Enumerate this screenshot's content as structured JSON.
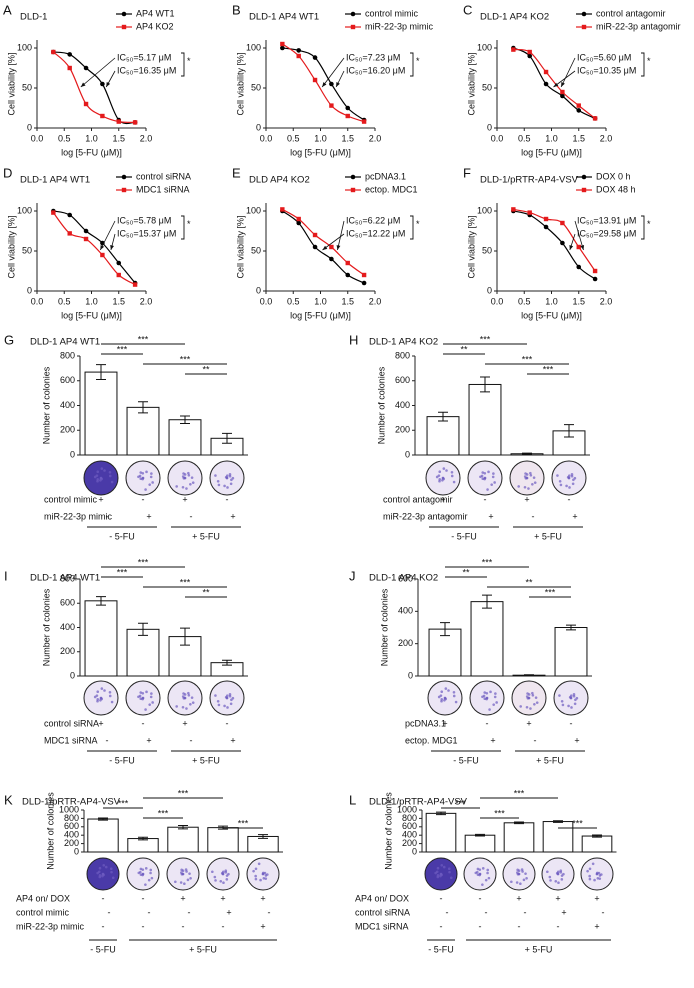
{
  "chart_data": [
    {
      "type": "line",
      "panel": "A",
      "title": "DLD-1",
      "xlabel": "log [5-FU (μM)]",
      "ylabel": "Cell viability [%]",
      "x": [
        0.3,
        0.6,
        0.9,
        1.2,
        1.5,
        1.8
      ],
      "xlim": [
        0,
        2
      ],
      "xticks": [
        {
          "value": 0,
          "label": "0.0"
        },
        0.5,
        {
          "value": 1,
          "label": "1.0"
        },
        1.5,
        {
          "value": 2,
          "label": "2.0"
        }
      ],
      "ylim": [
        0,
        110
      ],
      "yticks": [
        0,
        50,
        100
      ],
      "series": [
        {
          "name": "AP4 WT1",
          "color": "#000000",
          "marker": "circle",
          "values": [
            95,
            92,
            75,
            55,
            10,
            7
          ]
        },
        {
          "name": "AP4 KO2",
          "color": "#e41a1c",
          "marker": "square",
          "values": [
            95,
            75,
            30,
            15,
            8,
            7
          ]
        }
      ],
      "annotations": [
        "IC₅₀=5.17 μM",
        "IC₅₀=16.35 μM"
      ],
      "significance": "*"
    },
    {
      "type": "line",
      "panel": "B",
      "title": "DLD-1 AP4 WT1",
      "xlabel": "log [5-FU (μM)]",
      "ylabel": "Cell viability [%]",
      "x": [
        0.3,
        0.6,
        0.9,
        1.2,
        1.5,
        1.8
      ],
      "xlim": [
        0,
        2
      ],
      "xticks": [
        {
          "value": 0,
          "label": "0.0"
        },
        0.5,
        {
          "value": 1,
          "label": "1.0"
        },
        1.5,
        {
          "value": 2,
          "label": "2.0"
        }
      ],
      "ylim": [
        0,
        110
      ],
      "yticks": [
        0,
        50,
        100
      ],
      "series": [
        {
          "name": "control mimic",
          "color": "#000000",
          "marker": "circle",
          "values": [
            100,
            97,
            88,
            55,
            25,
            10
          ]
        },
        {
          "name": "miR-22-3p mimic",
          "color": "#e41a1c",
          "marker": "square",
          "values": [
            105,
            90,
            60,
            28,
            15,
            8
          ]
        }
      ],
      "annotations": [
        "IC₅₀=7.23 μM",
        "IC₅₀=16.20 μM"
      ],
      "significance": "*"
    },
    {
      "type": "line",
      "panel": "C",
      "title": "DLD-1 AP4 KO2",
      "xlabel": "log [5-FU (μM)]",
      "ylabel": "Cell viability [%]",
      "x": [
        0.3,
        0.6,
        0.9,
        1.2,
        1.5,
        1.8
      ],
      "xlim": [
        0,
        2
      ],
      "xticks": [
        {
          "value": 0,
          "label": "0.0"
        },
        0.5,
        {
          "value": 1,
          "label": "1.0"
        },
        1.5,
        {
          "value": 2,
          "label": "2.0"
        }
      ],
      "ylim": [
        0,
        110
      ],
      "yticks": [
        0,
        50,
        100
      ],
      "series": [
        {
          "name": "control antagomir",
          "color": "#000000",
          "marker": "circle",
          "values": [
            100,
            90,
            55,
            40,
            22,
            12
          ]
        },
        {
          "name": "miR-22-3p antagomir",
          "color": "#e41a1c",
          "marker": "square",
          "values": [
            98,
            95,
            70,
            45,
            28,
            12
          ]
        }
      ],
      "annotations": [
        "IC₅₀=5.60 μM",
        "IC₅₀=10.35 μM"
      ],
      "significance": "*"
    },
    {
      "type": "line",
      "panel": "D",
      "title": "DLD-1 AP4 WT1",
      "xlabel": "log [5-FU (μM)]",
      "ylabel": "Cell viability [%]",
      "x": [
        0.3,
        0.6,
        0.9,
        1.2,
        1.5,
        1.8
      ],
      "xlim": [
        0,
        2
      ],
      "xticks": [
        {
          "value": 0,
          "label": "0.0"
        },
        0.5,
        {
          "value": 1,
          "label": "1.0"
        },
        1.5,
        {
          "value": 2,
          "label": "2.0"
        }
      ],
      "ylim": [
        0,
        110
      ],
      "yticks": [
        0,
        50,
        100
      ],
      "series": [
        {
          "name": "control siRNA",
          "color": "#000000",
          "marker": "circle",
          "values": [
            100,
            95,
            75,
            60,
            35,
            10
          ]
        },
        {
          "name": "MDC1 siRNA",
          "color": "#e41a1c",
          "marker": "square",
          "values": [
            98,
            72,
            65,
            45,
            20,
            8
          ]
        }
      ],
      "annotations": [
        "IC₅₀=5.78 μM",
        "IC₅₀=15.37 μM"
      ],
      "significance": "*"
    },
    {
      "type": "line",
      "panel": "E",
      "title": "DLD AP4 KO2",
      "xlabel": "log [5-FU (μM)]",
      "ylabel": "Cell viability [%]",
      "x": [
        0.3,
        0.6,
        0.9,
        1.2,
        1.5,
        1.8
      ],
      "xlim": [
        0,
        2
      ],
      "xticks": [
        {
          "value": 0,
          "label": "0.0"
        },
        0.5,
        {
          "value": 1,
          "label": "1.0"
        },
        1.5,
        {
          "value": 2,
          "label": "2.0"
        }
      ],
      "ylim": [
        0,
        110
      ],
      "yticks": [
        0,
        50,
        100
      ],
      "series": [
        {
          "name": "pcDNA3.1",
          "color": "#000000",
          "marker": "circle",
          "values": [
            100,
            85,
            55,
            40,
            20,
            10
          ]
        },
        {
          "name": "ectop. MDC1",
          "color": "#e41a1c",
          "marker": "square",
          "values": [
            102,
            90,
            70,
            55,
            35,
            20
          ]
        }
      ],
      "annotations": [
        "IC₅₀=6.22 μM",
        "IC₅₀=12.22 μM"
      ],
      "significance": "*"
    },
    {
      "type": "line",
      "panel": "F",
      "title": "DLD-1/pRTR-AP4-VSV",
      "xlabel": "log [5-FU (μM)]",
      "ylabel": "Cell viability [%]",
      "x": [
        0.3,
        0.6,
        0.9,
        1.2,
        1.5,
        1.8
      ],
      "xlim": [
        0,
        2
      ],
      "xticks": [
        {
          "value": 0,
          "label": "0.0"
        },
        0.5,
        {
          "value": 1,
          "label": "1.0"
        },
        1.5,
        {
          "value": 2,
          "label": "2.0"
        }
      ],
      "ylim": [
        0,
        110
      ],
      "yticks": [
        0,
        50,
        100
      ],
      "series": [
        {
          "name": "DOX 0 h",
          "color": "#000000",
          "marker": "circle",
          "values": [
            100,
            95,
            80,
            60,
            30,
            15
          ]
        },
        {
          "name": "DOX 48 h",
          "color": "#e41a1c",
          "marker": "square",
          "values": [
            102,
            98,
            90,
            85,
            55,
            25
          ]
        }
      ],
      "annotations": [
        "IC₅₀=13.91 μM",
        "IC₅₀=29.58 μM"
      ],
      "significance": "*"
    },
    {
      "type": "bar",
      "panel": "G",
      "title": "DLD-1 AP4 WT1",
      "ylabel": "Number of colonies",
      "color": "#ffffff",
      "ylim": [
        0,
        800
      ],
      "yticks": [
        0,
        200,
        400,
        600,
        800
      ],
      "values": [
        670,
        385,
        285,
        135
      ],
      "errors": [
        60,
        45,
        30,
        40
      ],
      "significance": [
        {
          "from": 0,
          "to": 2,
          "label": "***"
        },
        {
          "from": 0,
          "to": 1,
          "label": "***"
        },
        {
          "from": 1,
          "to": 3,
          "label": "***"
        },
        {
          "from": 2,
          "to": 3,
          "label": "**"
        }
      ],
      "treatments": [
        {
          "name": "control mimic",
          "marks": [
            "+",
            "-",
            "+",
            "-"
          ]
        },
        {
          "name": "miR-22-3p mimic",
          "marks": [
            "-",
            "+",
            "-",
            "+"
          ]
        }
      ],
      "groups": [
        {
          "label": "- 5-FU",
          "from": 0,
          "to": 1
        },
        {
          "label": "+ 5-FU",
          "from": 2,
          "to": 3
        }
      ]
    },
    {
      "type": "bar",
      "panel": "H",
      "title": "DLD-1 AP4 KO2",
      "ylabel": "Number of colonies",
      "color": "#ffffff",
      "ylim": [
        0,
        800
      ],
      "yticks": [
        0,
        200,
        400,
        600,
        800
      ],
      "values": [
        310,
        570,
        10,
        195
      ],
      "errors": [
        35,
        60,
        5,
        50
      ],
      "significance": [
        {
          "from": 0,
          "to": 2,
          "label": "***"
        },
        {
          "from": 0,
          "to": 1,
          "label": "**"
        },
        {
          "from": 1,
          "to": 3,
          "label": "***"
        },
        {
          "from": 2,
          "to": 3,
          "label": "***"
        }
      ],
      "treatments": [
        {
          "name": "control antagomir",
          "marks": [
            "+",
            "-",
            "+",
            "-"
          ]
        },
        {
          "name": "miR-22-3p antagomir",
          "marks": [
            "-",
            "+",
            "-",
            "+"
          ]
        }
      ],
      "groups": [
        {
          "label": "- 5-FU",
          "from": 0,
          "to": 1
        },
        {
          "label": "+ 5-FU",
          "from": 2,
          "to": 3
        }
      ]
    },
    {
      "type": "bar",
      "panel": "I",
      "title": "DLD-1 AP4 WT1",
      "ylabel": "Number of colonies",
      "color": "#ffffff",
      "ylim": [
        0,
        800
      ],
      "yticks": [
        0,
        200,
        400,
        600,
        800
      ],
      "values": [
        620,
        385,
        325,
        110
      ],
      "errors": [
        35,
        50,
        70,
        20
      ],
      "significance": [
        {
          "from": 0,
          "to": 2,
          "label": "***"
        },
        {
          "from": 0,
          "to": 1,
          "label": "***"
        },
        {
          "from": 1,
          "to": 3,
          "label": "***"
        },
        {
          "from": 2,
          "to": 3,
          "label": "**"
        }
      ],
      "treatments": [
        {
          "name": "control siRNA",
          "marks": [
            "+",
            "-",
            "+",
            "-"
          ]
        },
        {
          "name": "MDC1 siRNA",
          "marks": [
            "-",
            "+",
            "-",
            "+"
          ]
        }
      ],
      "groups": [
        {
          "label": "- 5-FU",
          "from": 0,
          "to": 1
        },
        {
          "label": "+ 5-FU",
          "from": 2,
          "to": 3
        }
      ]
    },
    {
      "type": "bar",
      "panel": "J",
      "title": "DLD-1 AP4 KO2",
      "ylabel": "Number of colonies",
      "color": "#ffffff",
      "ylim": [
        0,
        600
      ],
      "yticks": [
        0,
        200,
        400,
        600
      ],
      "values": [
        290,
        460,
        5,
        300
      ],
      "errors": [
        40,
        40,
        3,
        15
      ],
      "significance": [
        {
          "from": 0,
          "to": 2,
          "label": "***"
        },
        {
          "from": 0,
          "to": 1,
          "label": "**"
        },
        {
          "from": 1,
          "to": 3,
          "label": "**"
        },
        {
          "from": 2,
          "to": 3,
          "label": "***"
        }
      ],
      "treatments": [
        {
          "name": "pcDNA3.1",
          "marks": [
            "+",
            "-",
            "+",
            "-"
          ]
        },
        {
          "name": "ectop. MDC1",
          "marks": [
            "-",
            "+",
            "-",
            "+"
          ]
        }
      ],
      "groups": [
        {
          "label": "- 5-FU",
          "from": 0,
          "to": 1
        },
        {
          "label": "+ 5-FU",
          "from": 2,
          "to": 3
        }
      ]
    },
    {
      "type": "bar",
      "panel": "K",
      "title": "DLD-1/pRTR-AP4-VSV",
      "ylabel": "Number of colonies",
      "color": "#ffffff",
      "ylim": [
        0,
        1000
      ],
      "yticks": [
        0,
        200,
        400,
        600,
        800,
        1000
      ],
      "values": [
        785,
        320,
        590,
        580,
        370
      ],
      "errors": [
        25,
        30,
        40,
        35,
        45
      ],
      "significance": [
        {
          "from": 1,
          "to": 3,
          "label": "***"
        },
        {
          "from": 0,
          "to": 1,
          "label": "***"
        },
        {
          "from": 1,
          "to": 2,
          "label": "***"
        },
        {
          "from": 3,
          "to": 4,
          "label": "***"
        }
      ],
      "treatments": [
        {
          "name": "AP4 on/ DOX",
          "marks": [
            "-",
            "-",
            "+",
            "+",
            "+"
          ]
        },
        {
          "name": "control mimic",
          "marks": [
            "-",
            "-",
            "-",
            "+",
            "-"
          ]
        },
        {
          "name": "miR-22-3p mimic",
          "marks": [
            "-",
            "-",
            "-",
            "-",
            "+"
          ]
        }
      ],
      "groups": [
        {
          "label": "- 5-FU",
          "from": 0,
          "to": 0
        },
        {
          "label": "+ 5-FU",
          "from": 1,
          "to": 4
        }
      ]
    },
    {
      "type": "bar",
      "panel": "L",
      "title": "DLD-1/pRTR-AP4-VSV",
      "ylabel": "Number of colonies",
      "color": "#ffffff",
      "ylim": [
        0,
        1000
      ],
      "yticks": [
        0,
        200,
        400,
        600,
        800,
        1000
      ],
      "values": [
        920,
        400,
        695,
        725,
        380
      ],
      "errors": [
        30,
        20,
        20,
        20,
        25
      ],
      "significance": [
        {
          "from": 1,
          "to": 3,
          "label": "***"
        },
        {
          "from": 0,
          "to": 1,
          "label": "***"
        },
        {
          "from": 1,
          "to": 2,
          "label": "***"
        },
        {
          "from": 3,
          "to": 4,
          "label": "***"
        }
      ],
      "treatments": [
        {
          "name": "AP4 on/ DOX",
          "marks": [
            "-",
            "-",
            "+",
            "+",
            "+"
          ]
        },
        {
          "name": "control siRNA",
          "marks": [
            "-",
            "-",
            "-",
            "+",
            "-"
          ]
        },
        {
          "name": "MDC1 siRNA",
          "marks": [
            "-",
            "-",
            "-",
            "-",
            "+"
          ]
        }
      ],
      "groups": [
        {
          "label": "- 5-FU",
          "from": 0,
          "to": 0
        },
        {
          "label": "+ 5-FU",
          "from": 1,
          "to": 4
        }
      ]
    }
  ]
}
